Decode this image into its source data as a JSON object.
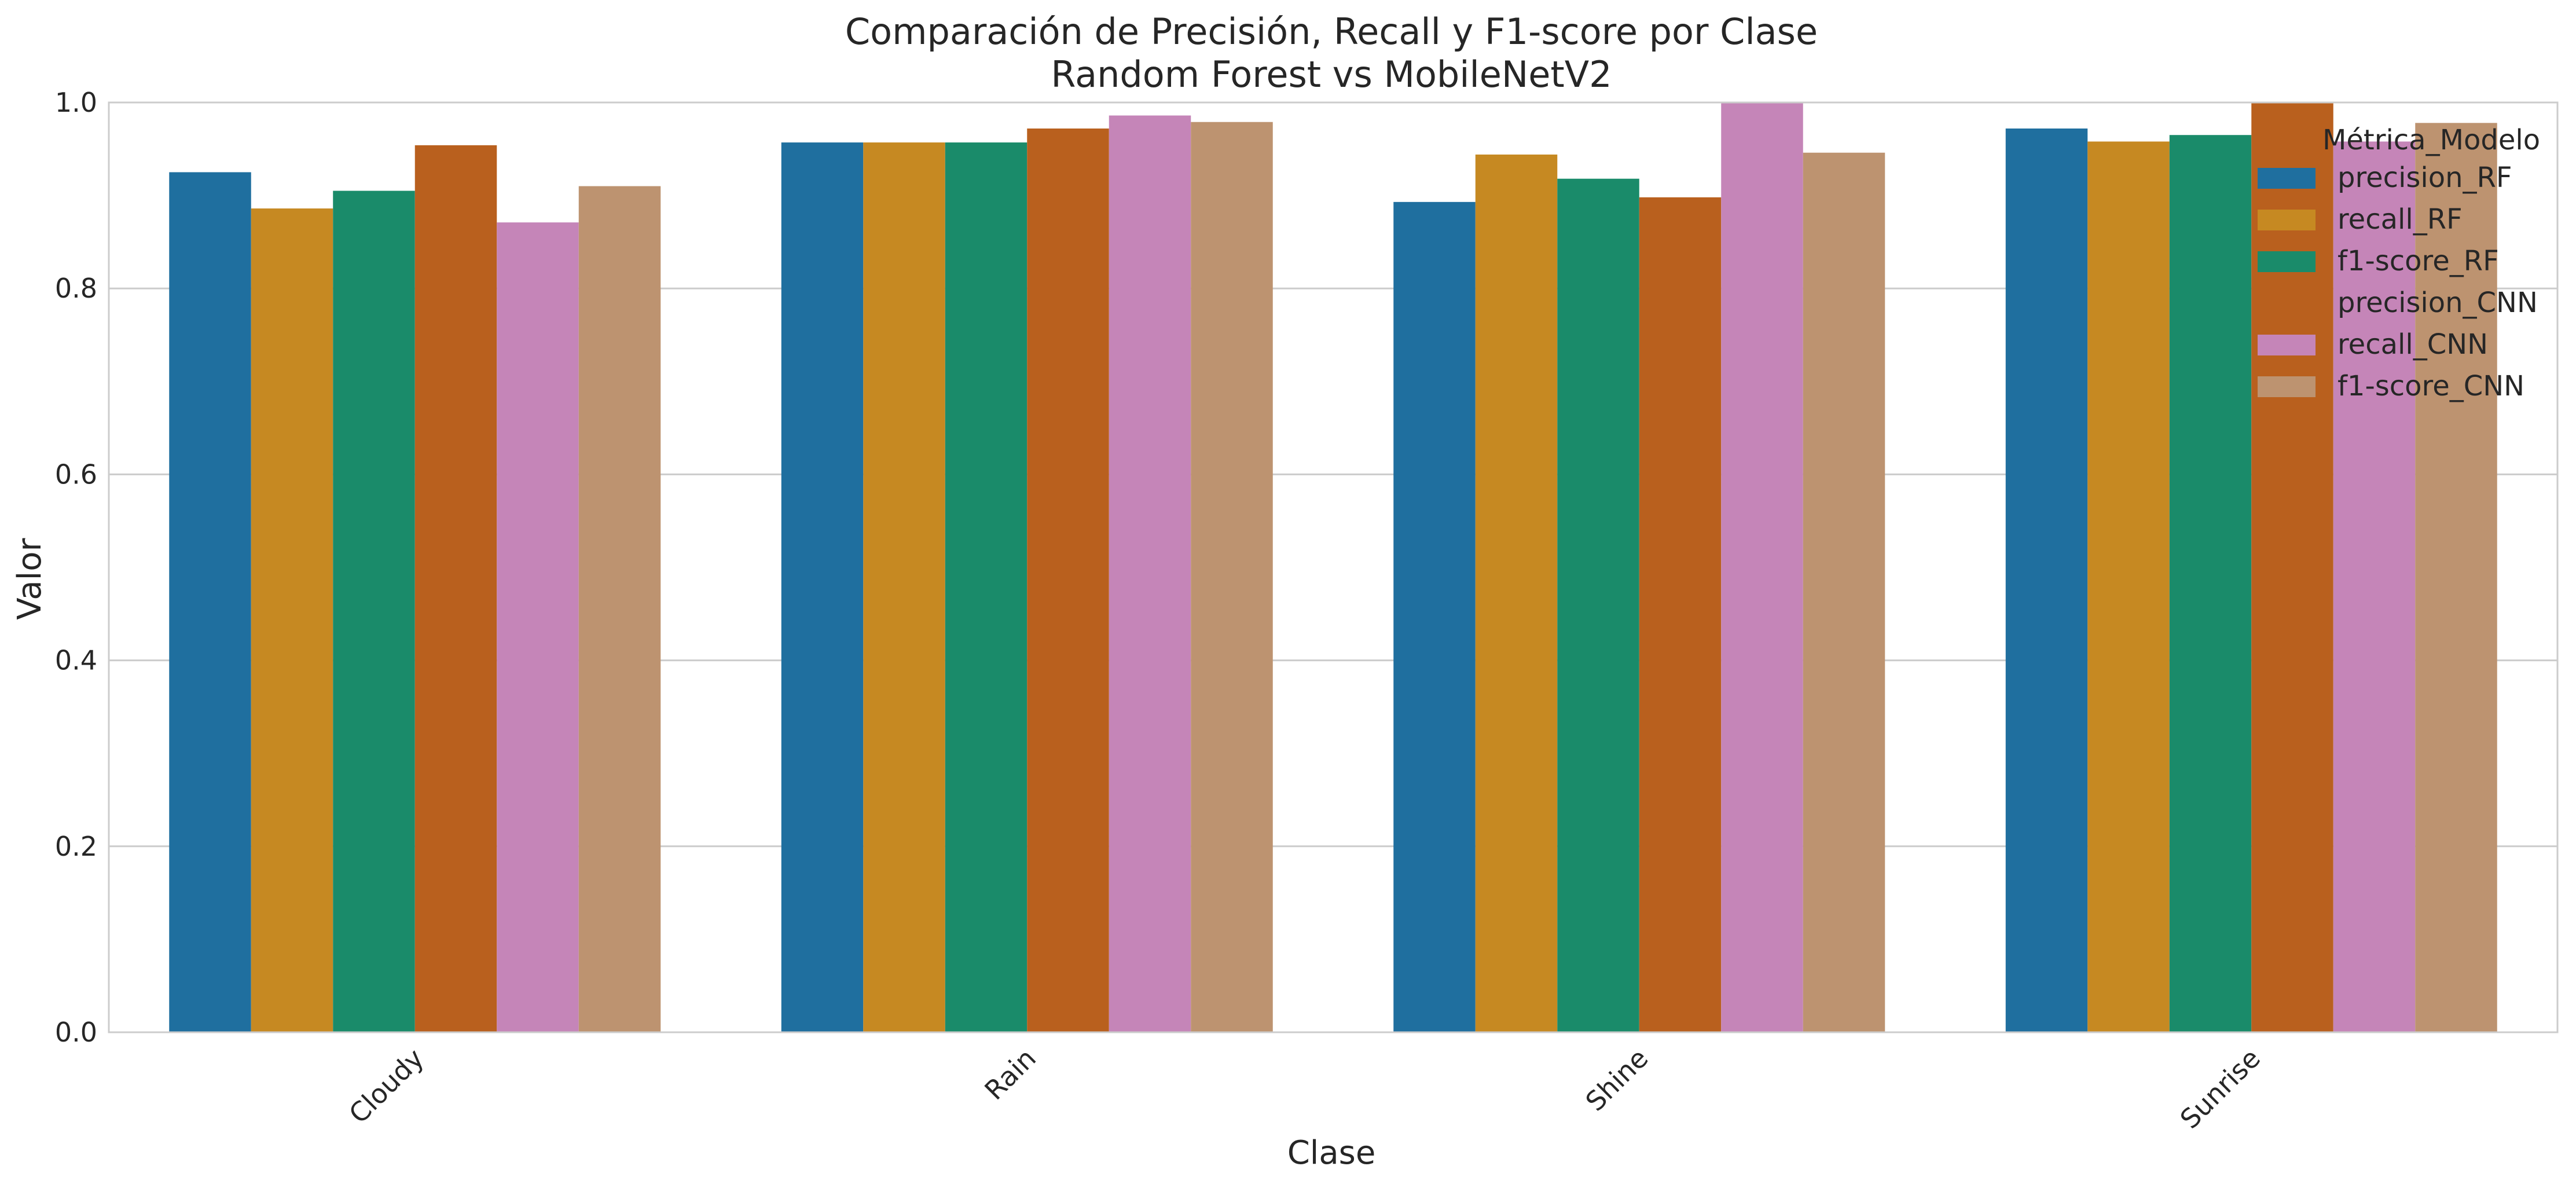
{
  "chart_data": {
    "type": "bar",
    "title": "Comparación de Precisión, Recall y F1-score por Clase",
    "subtitle": "Random Forest vs MobileNetV2",
    "xlabel": "Clase",
    "ylabel": "Valor",
    "ylim": [
      0,
      1.0
    ],
    "yticks": [
      "0.0",
      "0.2",
      "0.4",
      "0.6",
      "0.8",
      "1.0"
    ],
    "grid": "horizontal",
    "categories": [
      "Cloudy",
      "Rain",
      "Shine",
      "Sunrise"
    ],
    "legend": {
      "title": "Métrica_Modelo",
      "placement": "top-right"
    },
    "series": [
      {
        "name": "precision_RF",
        "color": "#1f6f9f",
        "values": [
          0.925,
          0.957,
          0.893,
          0.972
        ]
      },
      {
        "name": "recall_RF",
        "color": "#c68922",
        "values": [
          0.886,
          0.957,
          0.944,
          0.958
        ]
      },
      {
        "name": "f1-score_RF",
        "color": "#1a8b6a",
        "values": [
          0.905,
          0.957,
          0.918,
          0.965
        ]
      },
      {
        "name": "precision_CNN",
        "color": "#b9601e",
        "values": [
          0.954,
          0.972,
          0.898,
          1.0
        ]
      },
      {
        "name": "recall_CNN",
        "color": "#c585b8",
        "values": [
          0.871,
          0.986,
          1.0,
          0.958
        ]
      },
      {
        "name": "f1-score_CNN",
        "color": "#bd9370",
        "values": [
          0.91,
          0.979,
          0.946,
          0.978
        ]
      }
    ]
  }
}
